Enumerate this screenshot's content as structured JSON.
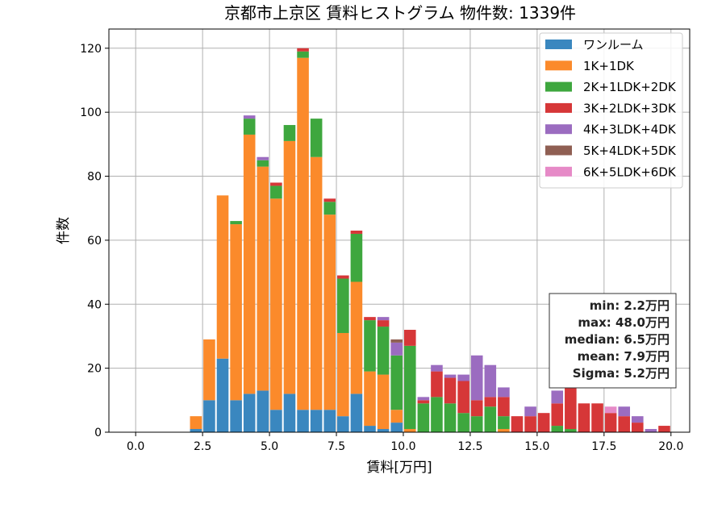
{
  "chart_data": {
    "type": "bar",
    "stacked": true,
    "title": "京都市上京区 賃料ヒストグラム 物件数: 1339件",
    "xlabel": "賃料[万円]",
    "ylabel": "件数",
    "xlim": [
      -1.0,
      20.7
    ],
    "ylim": [
      0,
      126
    ],
    "xticks": [
      0.0,
      2.5,
      5.0,
      7.5,
      10.0,
      12.5,
      15.0,
      17.5,
      20.0
    ],
    "xtick_labels": [
      "0.0",
      "2.5",
      "5.0",
      "7.5",
      "10.0",
      "12.5",
      "15.0",
      "17.5",
      "20.0"
    ],
    "yticks": [
      0,
      20,
      40,
      60,
      80,
      100,
      120
    ],
    "ytick_labels": [
      "0",
      "20",
      "40",
      "60",
      "80",
      "100",
      "120"
    ],
    "grid": true,
    "legend_position": "top-right",
    "bin_start": 2.0,
    "bin_width": 0.5,
    "series": [
      {
        "name": "ワンルーム",
        "color": "#3a87bf",
        "values": [
          1,
          10,
          23,
          10,
          12,
          13,
          7,
          12,
          7,
          7,
          7,
          5,
          12,
          2,
          1,
          3,
          0,
          0,
          0,
          0,
          0,
          0,
          0,
          0,
          0,
          0,
          0,
          0,
          0,
          0,
          0,
          0,
          0,
          0,
          0,
          0
        ]
      },
      {
        "name": "1K+1DK",
        "color": "#fb8a2b",
        "values": [
          4,
          19,
          51,
          55,
          81,
          70,
          66,
          79,
          110,
          79,
          61,
          26,
          35,
          17,
          17,
          4,
          1,
          0,
          0,
          0,
          0,
          0,
          0,
          1,
          0,
          0,
          0,
          0,
          0,
          0,
          0,
          0,
          0,
          0,
          0,
          0
        ]
      },
      {
        "name": "2K+1LDK+2DK",
        "color": "#3ea73e",
        "values": [
          0,
          0,
          0,
          1,
          5,
          2,
          4,
          5,
          2,
          12,
          4,
          17,
          15,
          16,
          15,
          17,
          26,
          9,
          11,
          9,
          6,
          5,
          8,
          4,
          0,
          0,
          0,
          2,
          1,
          0,
          0,
          0,
          0,
          0,
          0,
          0
        ]
      },
      {
        "name": "3K+2LDK+3DK",
        "color": "#d63738",
        "values": [
          0,
          0,
          0,
          0,
          0,
          0,
          1,
          0,
          1,
          0,
          1,
          1,
          1,
          1,
          2,
          0,
          5,
          1,
          8,
          8,
          10,
          5,
          3,
          6,
          5,
          5,
          6,
          7,
          20,
          9,
          9,
          6,
          5,
          3,
          0,
          2
        ]
      },
      {
        "name": "4K+3LDK+4DK",
        "color": "#9b6cc0",
        "values": [
          0,
          0,
          0,
          0,
          1,
          1,
          0,
          0,
          0,
          0,
          0,
          0,
          0,
          0,
          1,
          4,
          0,
          1,
          2,
          1,
          2,
          14,
          10,
          3,
          0,
          3,
          0,
          4,
          0,
          0,
          0,
          0,
          3,
          2,
          1,
          0
        ]
      },
      {
        "name": "5K+4LDK+5DK",
        "color": "#8f5f53",
        "values": [
          0,
          0,
          0,
          0,
          0,
          0,
          0,
          0,
          0,
          0,
          0,
          0,
          0,
          0,
          0,
          1,
          0,
          0,
          0,
          0,
          0,
          0,
          0,
          0,
          0,
          0,
          0,
          0,
          1,
          0,
          0,
          0,
          0,
          0,
          0,
          0
        ]
      },
      {
        "name": "6K+5LDK+6DK",
        "color": "#e68ac7",
        "values": [
          0,
          0,
          0,
          0,
          0,
          0,
          0,
          0,
          0,
          0,
          0,
          0,
          0,
          0,
          0,
          0,
          0,
          0,
          0,
          0,
          0,
          0,
          0,
          0,
          0,
          0,
          0,
          0,
          0,
          0,
          0,
          2,
          0,
          0,
          0,
          0
        ]
      }
    ],
    "stats": {
      "min": "min: 2.2万円",
      "max": "max: 48.0万円",
      "median": "median: 6.5万円",
      "mean": "mean: 7.9万円",
      "sigma": "Sigma: 5.2万円"
    }
  }
}
